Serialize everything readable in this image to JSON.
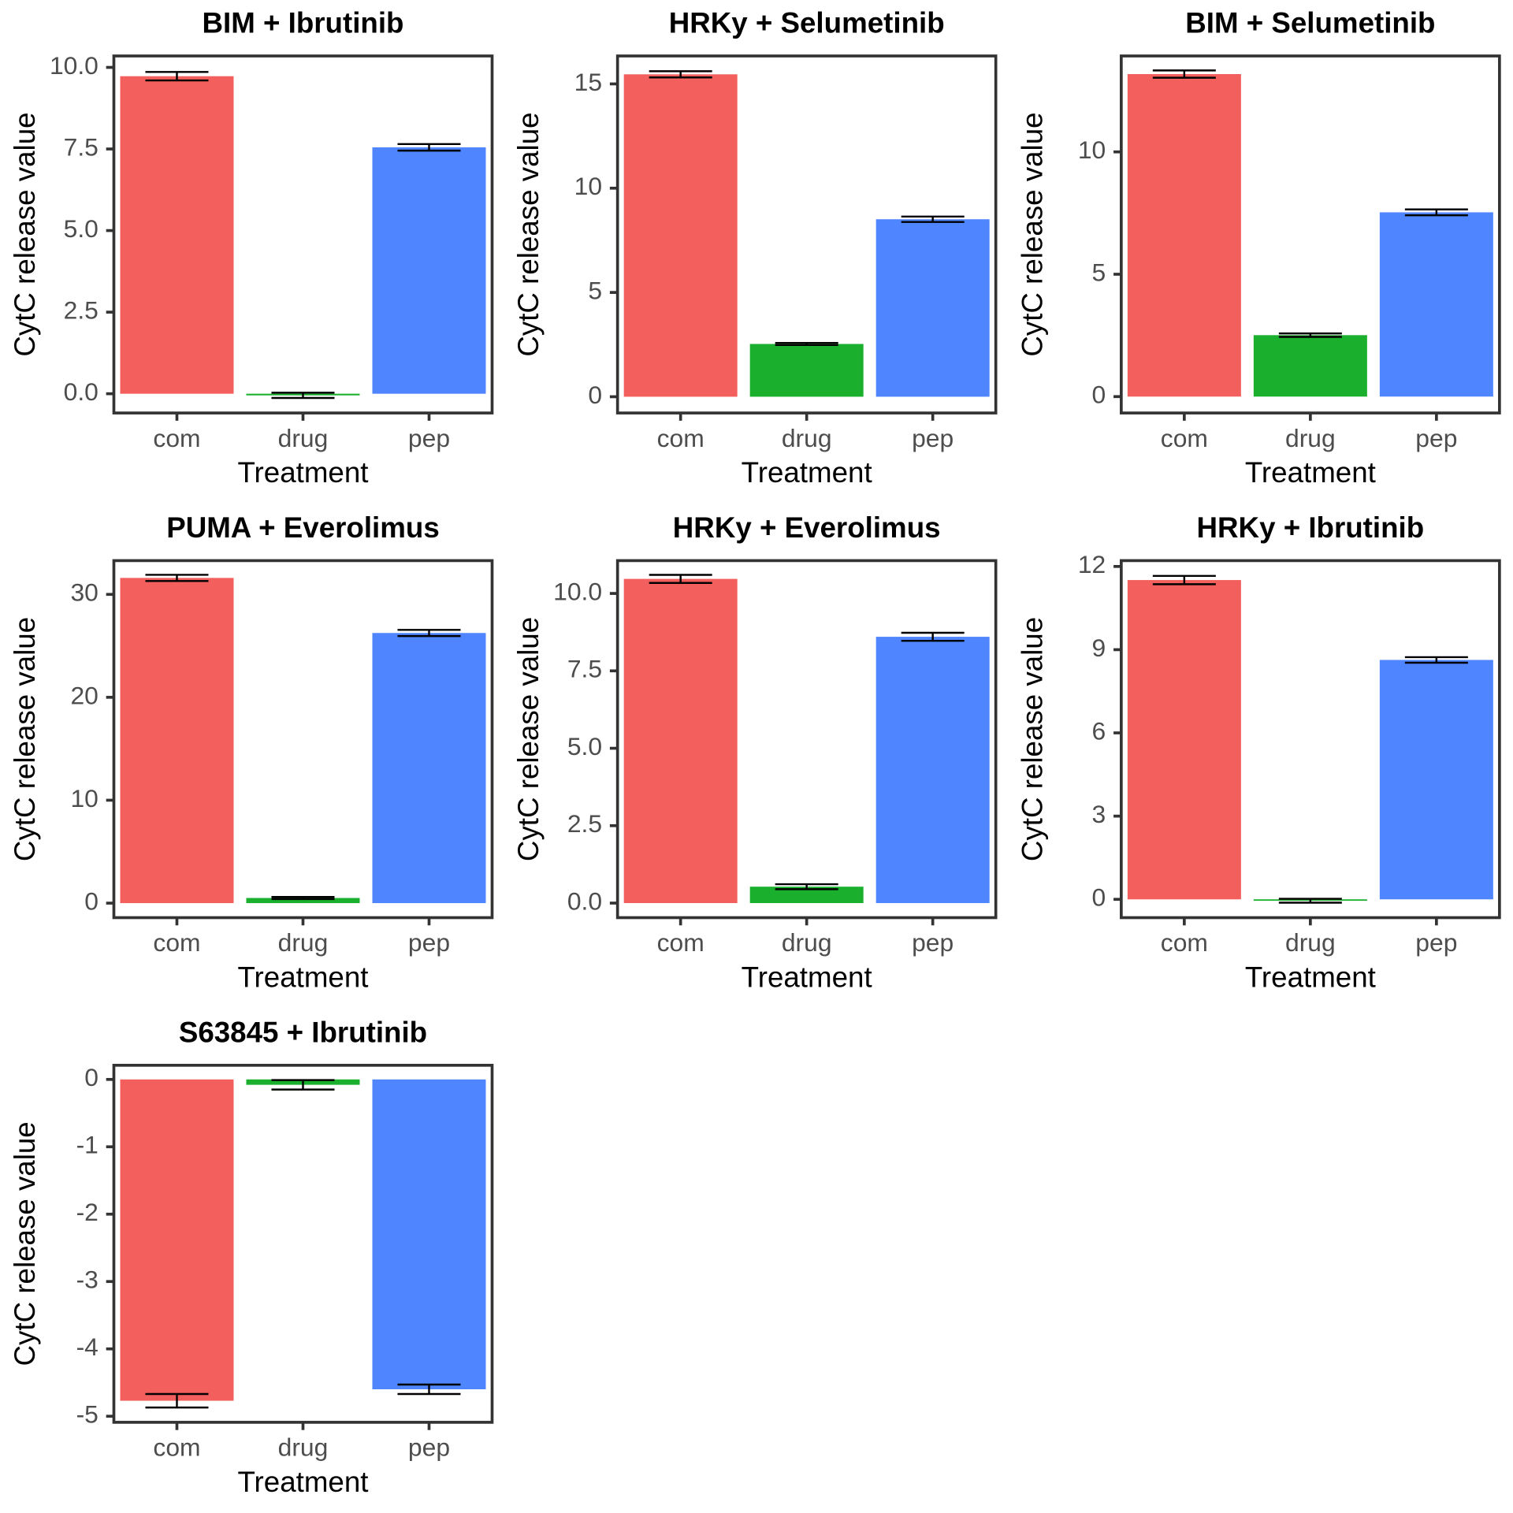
{
  "chart_data": [
    {
      "type": "bar",
      "title": "BIM + Ibrutinib",
      "x_label": "Treatment",
      "y_label": "CytC release value",
      "categories": [
        "com",
        "drug",
        "pep"
      ],
      "values": [
        9.73,
        -0.05,
        7.55
      ],
      "errors": [
        0.13,
        0.08,
        0.1
      ],
      "colors": [
        "#f35f5c",
        "#1ab02e",
        "#4f86ff"
      ],
      "ylim": [
        -0.59,
        10.35
      ],
      "yticks": [
        {
          "value": 0,
          "label": "0.0"
        },
        2.5,
        {
          "value": 5,
          "label": "5.0"
        },
        7.5,
        {
          "value": 10,
          "label": "10.0"
        }
      ]
    },
    {
      "type": "bar",
      "title": "HRKy + Selumetinib",
      "x_label": "Treatment",
      "y_label": "CytC release value",
      "categories": [
        "com",
        "drug",
        "pep"
      ],
      "values": [
        15.46,
        2.53,
        8.51
      ],
      "errors": [
        0.15,
        0.05,
        0.13
      ],
      "colors": [
        "#f35f5c",
        "#1ab02e",
        "#4f86ff"
      ],
      "ylim": [
        -0.78,
        16.34
      ],
      "yticks": [
        0,
        5,
        10,
        15
      ]
    },
    {
      "type": "bar",
      "title": "BIM + Selumetinib",
      "x_label": "Treatment",
      "y_label": "CytC release value",
      "categories": [
        "com",
        "drug",
        "pep"
      ],
      "values": [
        13.18,
        2.51,
        7.53
      ],
      "errors": [
        0.15,
        0.07,
        0.12
      ],
      "colors": [
        "#f35f5c",
        "#1ab02e",
        "#4f86ff"
      ],
      "ylim": [
        -0.67,
        13.92
      ],
      "yticks": [
        0,
        5,
        10
      ]
    },
    {
      "type": "bar",
      "title": "PUMA + Everolimus",
      "x_label": "Treatment",
      "y_label": "CytC release value",
      "categories": [
        "com",
        "drug",
        "pep"
      ],
      "values": [
        31.6,
        0.5,
        26.25
      ],
      "errors": [
        0.3,
        0.1,
        0.3
      ],
      "colors": [
        "#f35f5c",
        "#1ab02e",
        "#4f86ff"
      ],
      "ylim": [
        -1.41,
        33.28
      ],
      "yticks": [
        0,
        10,
        20,
        30
      ]
    },
    {
      "type": "bar",
      "title": "HRKy + Everolimus",
      "x_label": "Treatment",
      "y_label": "CytC release value",
      "categories": [
        "com",
        "drug",
        "pep"
      ],
      "values": [
        10.47,
        0.53,
        8.6
      ],
      "errors": [
        0.13,
        0.08,
        0.13
      ],
      "colors": [
        "#f35f5c",
        "#1ab02e",
        "#4f86ff"
      ],
      "ylim": [
        -0.47,
        11.06
      ],
      "yticks": [
        {
          "value": 0,
          "label": "0.0"
        },
        2.5,
        {
          "value": 5,
          "label": "5.0"
        },
        7.5,
        {
          "value": 10,
          "label": "10.0"
        }
      ]
    },
    {
      "type": "bar",
      "title": "HRKy + Ibrutinib",
      "x_label": "Treatment",
      "y_label": "CytC release value",
      "categories": [
        "com",
        "drug",
        "pep"
      ],
      "values": [
        11.51,
        -0.05,
        8.63
      ],
      "errors": [
        0.15,
        0.07,
        0.1
      ],
      "colors": [
        "#f35f5c",
        "#1ab02e",
        "#4f86ff"
      ],
      "ylim": [
        -0.66,
        12.21
      ],
      "yticks": [
        0,
        3,
        6,
        9,
        12
      ]
    },
    {
      "type": "bar",
      "title": "S63845 + Ibrutinib",
      "x_label": "Treatment",
      "y_label": "CytC release value",
      "categories": [
        "com",
        "drug",
        "pep"
      ],
      "values": [
        -4.77,
        -0.08,
        -4.6
      ],
      "errors": [
        0.1,
        0.07,
        0.07
      ],
      "colors": [
        "#f35f5c",
        "#1ab02e",
        "#4f86ff"
      ],
      "ylim": [
        -5.09,
        0.21
      ],
      "yticks": [
        -5,
        -4,
        -3,
        -2,
        -1,
        0
      ]
    }
  ]
}
